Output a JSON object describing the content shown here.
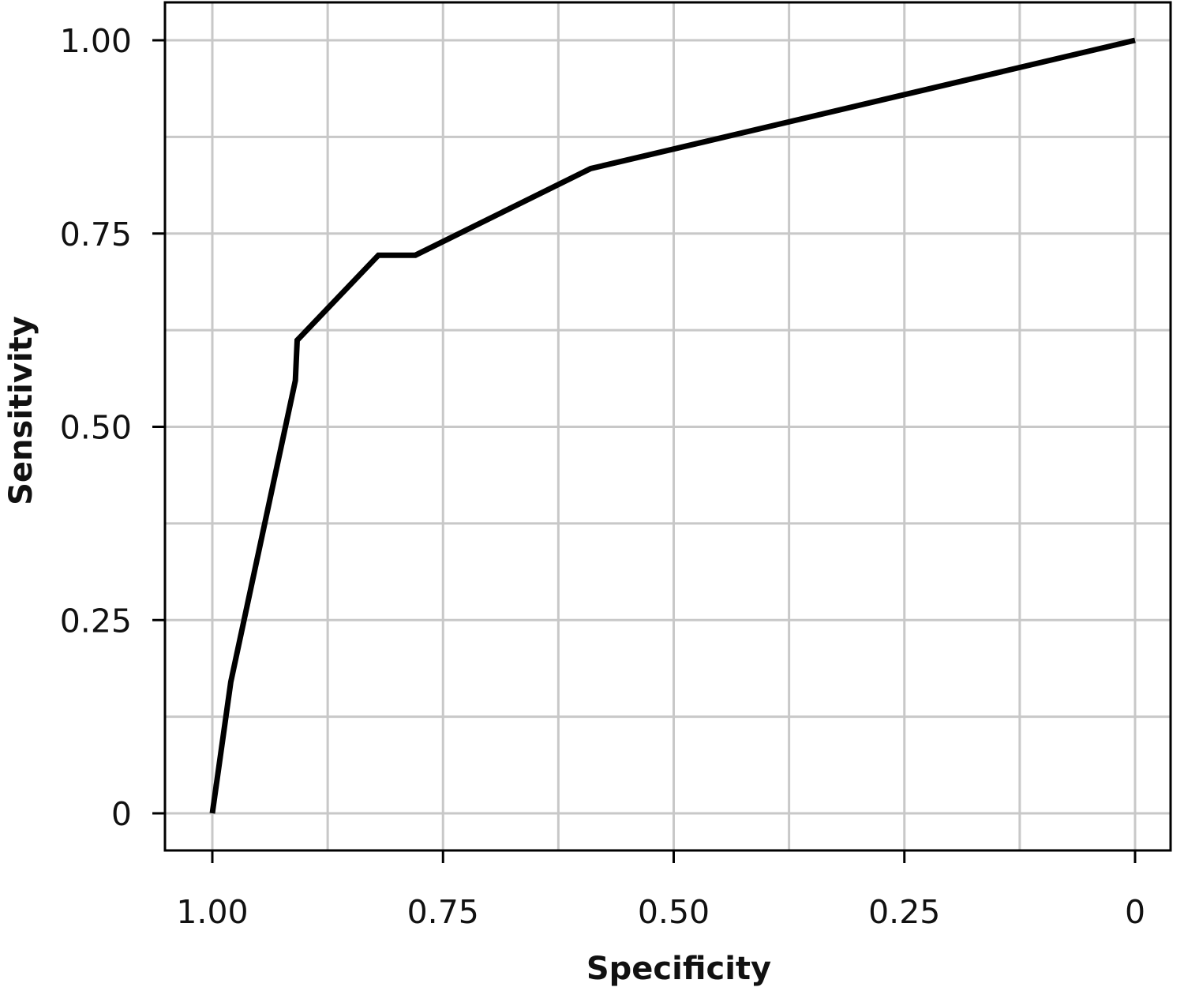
{
  "chart_data": {
    "type": "line",
    "xlabel": "Specificity",
    "ylabel": "Sensitivity",
    "x_reversed": true,
    "xlim": [
      1.0,
      0.0
    ],
    "ylim": [
      0.0,
      1.0
    ],
    "x_ticks": [
      {
        "value": 1.0,
        "label": "1.00"
      },
      {
        "value": 0.75,
        "label": "0.75"
      },
      {
        "value": 0.5,
        "label": "0.50"
      },
      {
        "value": 0.25,
        "label": "0.25"
      },
      {
        "value": 0.0,
        "label": "0"
      }
    ],
    "y_ticks": [
      {
        "value": 0.0,
        "label": "0"
      },
      {
        "value": 0.25,
        "label": "0.25"
      },
      {
        "value": 0.5,
        "label": "0.50"
      },
      {
        "value": 0.75,
        "label": "0.75"
      },
      {
        "value": 1.0,
        "label": "1.00"
      }
    ],
    "grid": true,
    "grid_minor": true,
    "legend": "none",
    "colors": {
      "line": "#000000",
      "grid": "#c8c8c8",
      "frame": "#000000"
    },
    "series": [
      {
        "x": [
          1.0,
          0.98,
          0.91,
          0.908,
          0.82,
          0.78,
          0.59,
          0.0
        ],
        "y": [
          0.0,
          0.17,
          0.56,
          0.612,
          0.722,
          0.722,
          0.834,
          1.0
        ]
      }
    ]
  }
}
